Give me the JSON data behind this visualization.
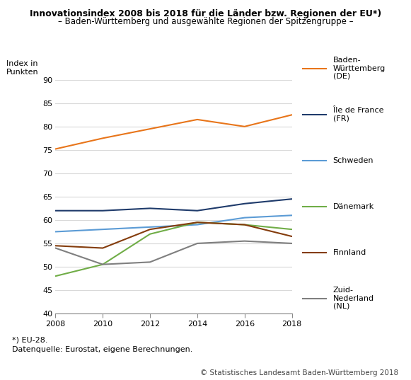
{
  "title_line1": "Innovationsindex 2008 bis 2018 für die Länder bzw. Regionen der EU*)",
  "title_line2": "– Baden-Württemberg und ausgewählte Regionen der Spitzengruppe –",
  "ylabel": "Index in\nPunkten",
  "years": [
    2008,
    2010,
    2012,
    2014,
    2016,
    2018
  ],
  "series": [
    {
      "label": "Baden-\nWürttemberg\n(DE)",
      "color": "#E8751A",
      "values": [
        75.2,
        77.5,
        79.5,
        81.5,
        80.0,
        82.5
      ]
    },
    {
      "label": "Île de France\n(FR)",
      "color": "#1F3B6B",
      "values": [
        62.0,
        62.0,
        62.5,
        62.0,
        63.5,
        64.5
      ]
    },
    {
      "label": "Schweden",
      "color": "#5B9BD5",
      "values": [
        57.5,
        58.0,
        58.5,
        59.0,
        60.5,
        61.0
      ]
    },
    {
      "label": "Dänemark",
      "color": "#70AD47",
      "values": [
        48.0,
        50.5,
        57.0,
        59.5,
        59.0,
        58.0
      ]
    },
    {
      "label": "Finnland",
      "color": "#843C0C",
      "values": [
        54.5,
        54.0,
        58.0,
        59.5,
        59.0,
        56.5
      ]
    },
    {
      "label": "Zuid-\nNederland\n(NL)",
      "color": "#7F7F7F",
      "values": [
        54.0,
        50.5,
        51.0,
        55.0,
        55.5,
        55.0
      ]
    }
  ],
  "ylim": [
    40,
    90
  ],
  "yticks": [
    40,
    45,
    50,
    55,
    60,
    65,
    70,
    75,
    80,
    85,
    90
  ],
  "footnote1": "*) EU-28.",
  "footnote2": "Datenquelle: Eurostat, eigene Berechnungen.",
  "copyright": "© Statistisches Landesamt Baden-Württemberg 2018",
  "bg_color": "#FFFFFF",
  "grid_color": "#D9D9D9",
  "title_fontsize": 9.0,
  "subtitle_fontsize": 8.5,
  "axis_label_fontsize": 8.0,
  "tick_fontsize": 8.0,
  "legend_fontsize": 8.0,
  "footnote_fontsize": 8.0,
  "copyright_fontsize": 7.5
}
